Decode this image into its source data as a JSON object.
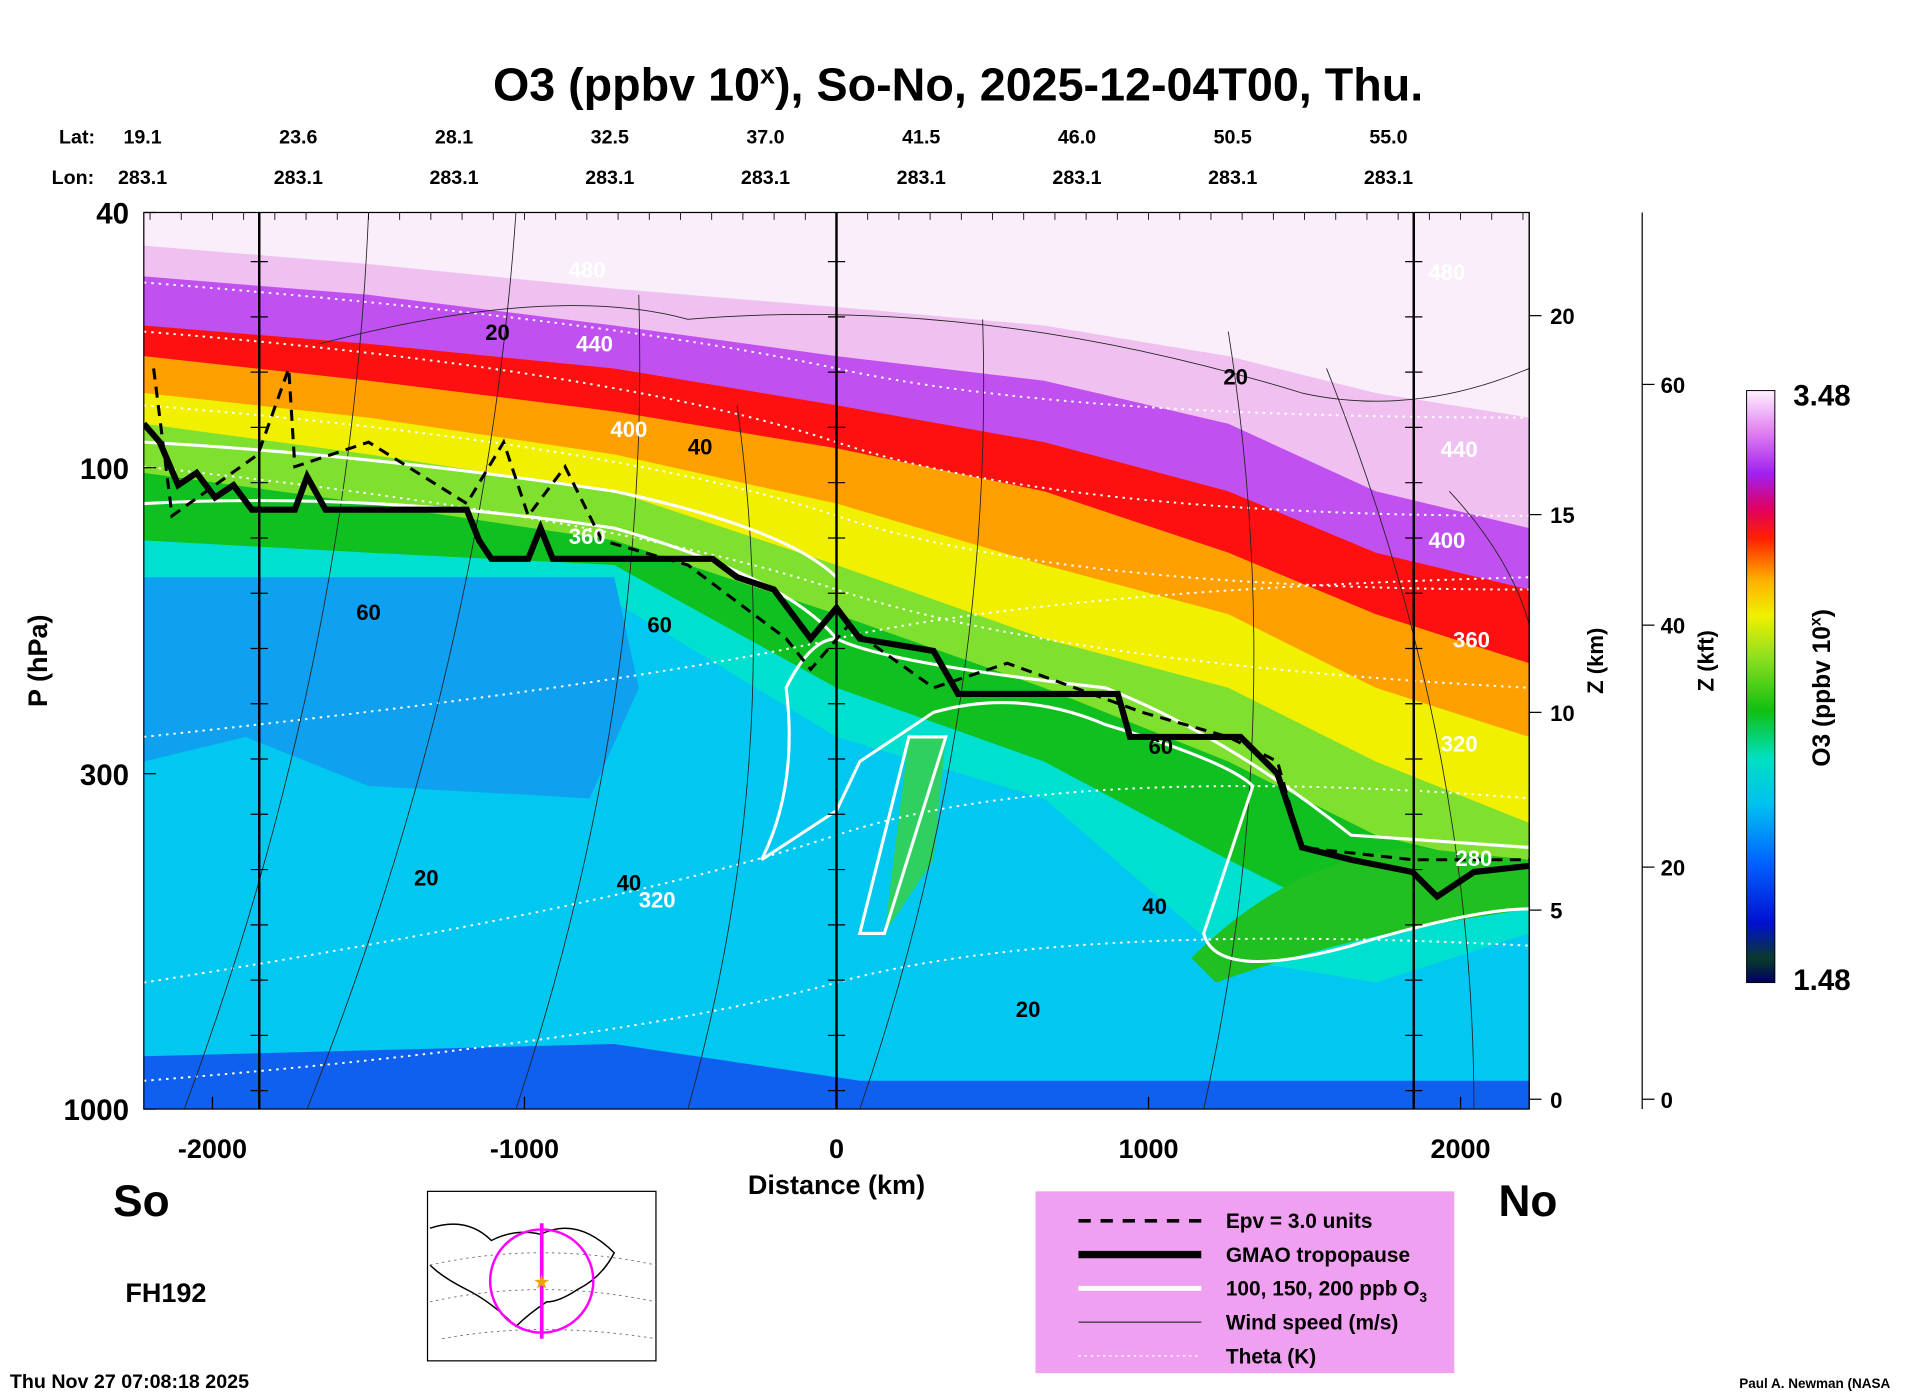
{
  "chart_data": {
    "type": "heatmap",
    "title": "O3 (ppbv 10",
    "title_sup": "x",
    "title_rest": "), So-No, 2025-12-04T00, Thu.",
    "lat_label": "Lat:",
    "lon_label": "Lon:",
    "lat": [
      "19.1",
      "23.6",
      "28.1",
      "32.5",
      "37.0",
      "41.5",
      "46.0",
      "50.5",
      "55.0"
    ],
    "lon": [
      "283.1",
      "283.1",
      "283.1",
      "283.1",
      "283.1",
      "283.1",
      "283.1",
      "283.1",
      "283.1"
    ],
    "xlabel": "Distance (km)",
    "xlim": [
      -2220,
      2220
    ],
    "xticks": [
      -2000,
      -1000,
      0,
      1000,
      2000
    ],
    "xtick_labels": [
      "-2000",
      "-1000",
      "0",
      "1000",
      "2000"
    ],
    "ylabel": "P (hPa)",
    "ylim": [
      1000,
      40
    ],
    "yticks": [
      40,
      100,
      300,
      1000
    ],
    "ytick_labels": [
      "40",
      "100",
      "300",
      "1000"
    ],
    "z_km_label": "Z (km)",
    "z_km_ticks": [
      "0",
      "5",
      "10",
      "15",
      "20"
    ],
    "z_kft_label": "Z (kft)",
    "z_kft_ticks": [
      "0",
      "20",
      "40",
      "60"
    ],
    "section_lines_km": [
      -1850,
      0,
      1850
    ],
    "colorbar": {
      "label": "O3 (ppbv 10",
      "label_sup": "x",
      "label_end": ")",
      "max": "3.48",
      "min": "1.48"
    },
    "contour_labels": {
      "wind": [
        "20",
        "40",
        "60",
        "20",
        "40",
        "60",
        "20",
        "40",
        "20",
        "60"
      ],
      "theta": [
        "480",
        "440",
        "400",
        "360",
        "320",
        "480",
        "440",
        "400",
        "360",
        "320",
        "280"
      ]
    },
    "legend": [
      {
        "style": "dashed",
        "label": "Epv = 3.0 units"
      },
      {
        "style": "thick",
        "label": "GMAO tropopause"
      },
      {
        "style": "white",
        "label": "100, 150, 200 ppb O",
        "sub": "3"
      },
      {
        "style": "thin",
        "label": "Wind speed (m/s)"
      },
      {
        "style": "dotted",
        "label": "Theta (K)"
      }
    ],
    "legend_bg": "#f0a0f0"
  },
  "labels": {
    "south": "So",
    "north": "No",
    "forecast_hour": "FH192",
    "timestamp": "Thu Nov 27 07:08:18 2025",
    "credit": "Paul A. Newman (NASA"
  }
}
